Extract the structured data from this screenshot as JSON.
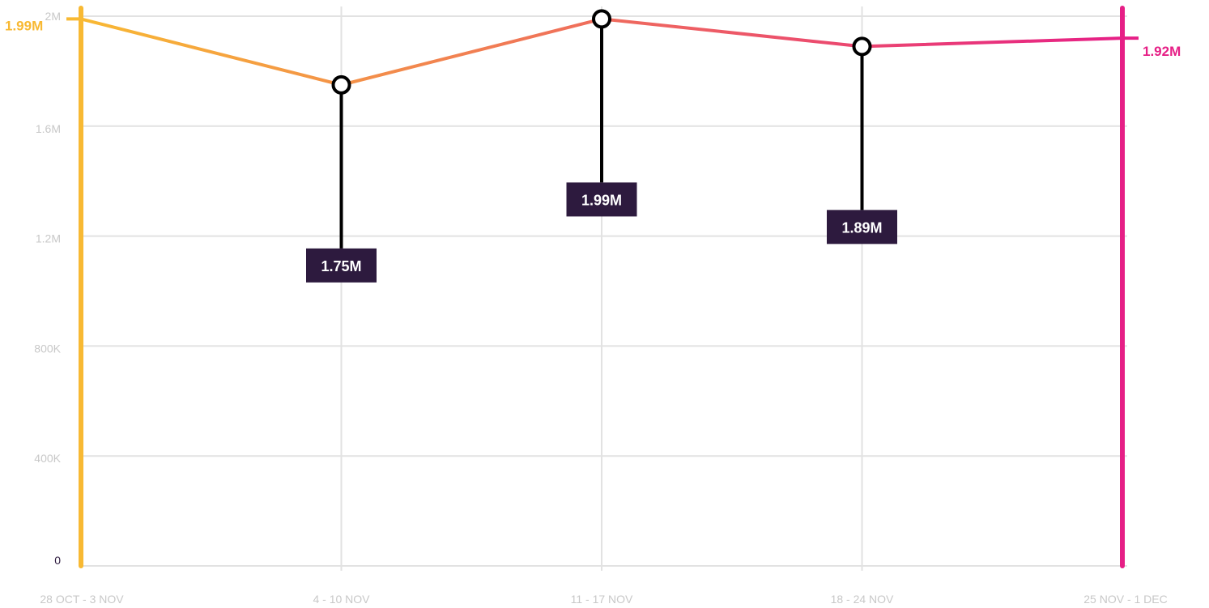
{
  "chart_data": {
    "type": "line",
    "categories": [
      "28 OCT - 3 NOV",
      "4 - 10 NOV",
      "11 - 17 NOV",
      "18 - 24 NOV",
      "25 NOV - 1 DEC"
    ],
    "values": [
      1990000,
      1750000,
      1990000,
      1890000,
      1920000
    ],
    "y_ticks": [
      "0",
      "400K",
      "800K",
      "1.2M",
      "1.6M",
      "2M"
    ],
    "y_tick_values": [
      0,
      400000,
      800000,
      1200000,
      1600000,
      2000000
    ],
    "ylim": [
      0,
      2000000
    ],
    "start_label": "1.99M",
    "end_label": "1.92M",
    "callouts": [
      {
        "index": 1,
        "label": "1.75M"
      },
      {
        "index": 2,
        "label": "1.99M"
      },
      {
        "index": 3,
        "label": "1.89M"
      }
    ],
    "grid": true,
    "colors": {
      "start": "#f8b933",
      "end": "#e61f86",
      "callout_bg": "#2d1a3e",
      "grid": "#e2e2e2",
      "tick": "#c8c8c8"
    }
  }
}
